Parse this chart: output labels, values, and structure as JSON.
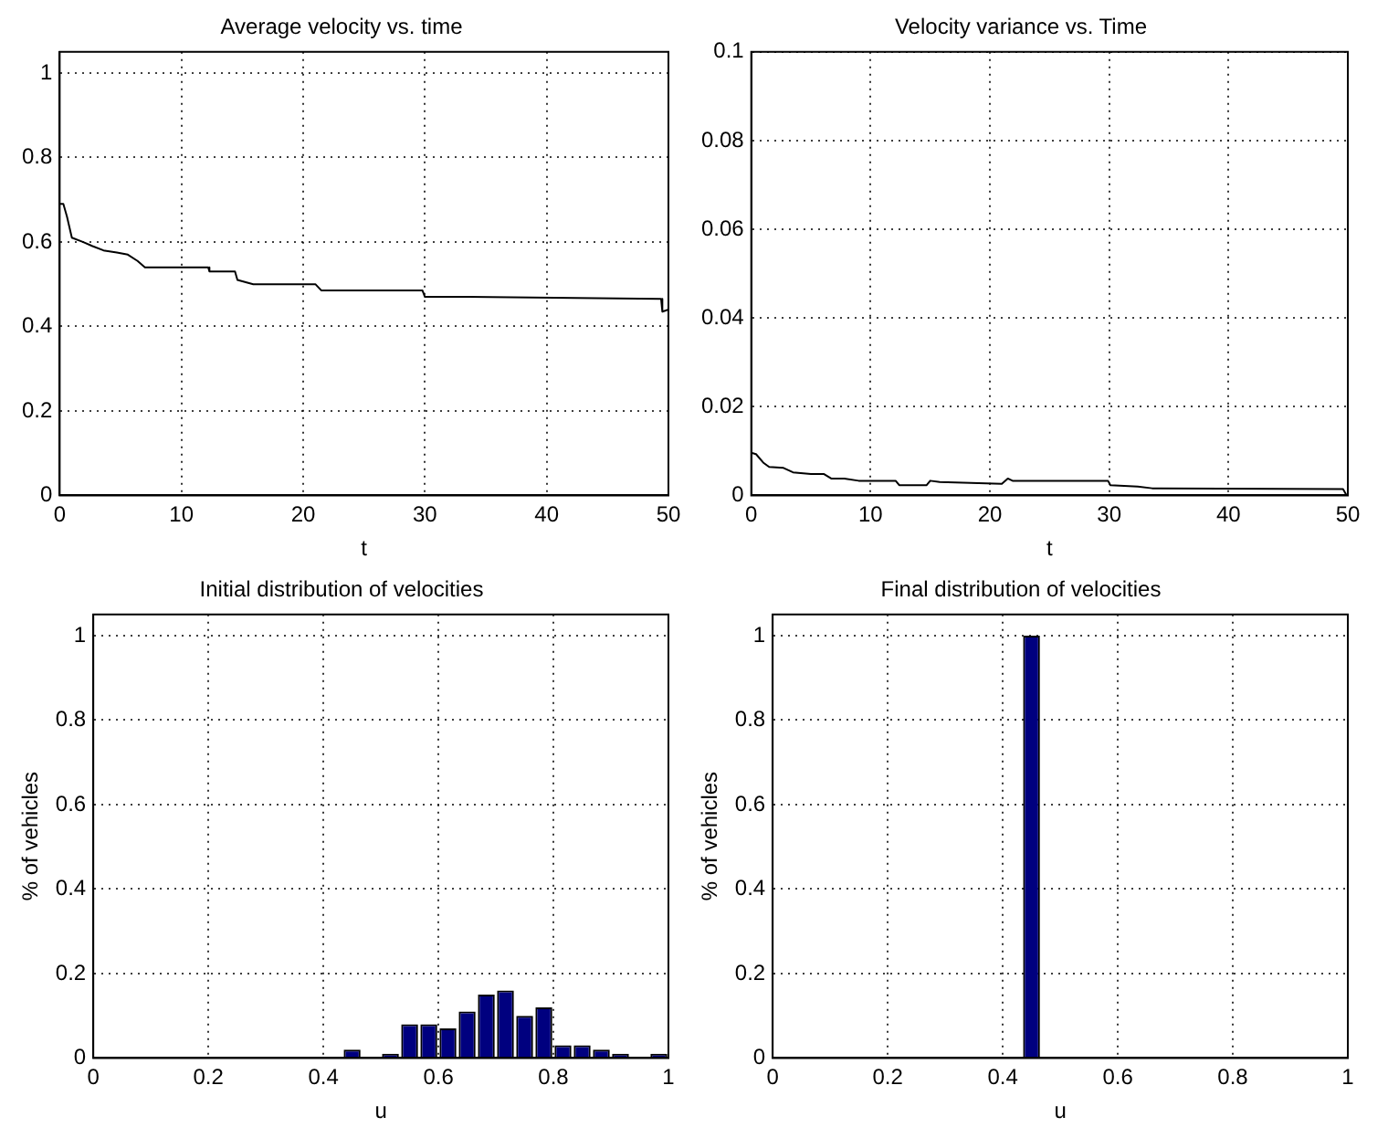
{
  "chart_data": [
    {
      "type": "line",
      "title": "Average velocity vs. time",
      "xlabel": "t",
      "color": "#000000",
      "grid": true,
      "xlim": [
        0,
        50
      ],
      "xticks": [
        0,
        10,
        20,
        30,
        40,
        50
      ],
      "ylim": [
        0,
        1.05
      ],
      "yticks": [
        0,
        0.2,
        0.4,
        0.6,
        0.8,
        1
      ],
      "x": [
        0,
        0.3,
        0.6,
        1.0,
        1.9,
        2.7,
        3.6,
        4.7,
        5.6,
        6.4,
        7.0,
        12.2,
        12.3,
        14.4,
        14.6,
        15.9,
        21.0,
        21.5,
        29.8,
        30.0,
        33.6,
        49.4,
        49.5,
        50
      ],
      "values": [
        0.69,
        0.69,
        0.66,
        0.61,
        0.6,
        0.59,
        0.58,
        0.575,
        0.57,
        0.555,
        0.54,
        0.54,
        0.53,
        0.53,
        0.51,
        0.5,
        0.5,
        0.485,
        0.485,
        0.47,
        0.47,
        0.465,
        0.435,
        0.44
      ]
    },
    {
      "type": "line",
      "title": "Velocity variance vs. Time",
      "xlabel": "t",
      "color": "#000000",
      "grid": true,
      "xlim": [
        0,
        50
      ],
      "xticks": [
        0,
        10,
        20,
        30,
        40,
        50
      ],
      "ylim": [
        0,
        0.1
      ],
      "yticks": [
        0,
        0.02,
        0.04,
        0.06,
        0.08,
        0.1
      ],
      "x": [
        0,
        0.4,
        1.0,
        1.5,
        2.7,
        3.5,
        5.0,
        6.1,
        6.7,
        7.8,
        9.0,
        12.1,
        12.4,
        14.7,
        15.0,
        15.8,
        21.0,
        21.5,
        21.9,
        29.9,
        30.1,
        32.4,
        33.6,
        49.6,
        49.9
      ],
      "values": [
        0.0096,
        0.0093,
        0.0074,
        0.0064,
        0.0062,
        0.0052,
        0.0048,
        0.0048,
        0.0038,
        0.0038,
        0.0033,
        0.0033,
        0.0023,
        0.0023,
        0.0033,
        0.003,
        0.0026,
        0.0038,
        0.0033,
        0.0033,
        0.0023,
        0.002,
        0.0016,
        0.0014,
        0
      ]
    },
    {
      "type": "histogram",
      "title": "Initial distribution of velocities",
      "xlabel": "u",
      "ylabel": "% of vehicles",
      "color": "#00007f",
      "grid": true,
      "xlim": [
        0,
        1
      ],
      "xticks": [
        0,
        0.2,
        0.4,
        0.6,
        0.8,
        1
      ],
      "ylim": [
        0,
        1.05
      ],
      "yticks": [
        0,
        0.2,
        0.4,
        0.6,
        0.8,
        1
      ],
      "bins": [
        0,
        0.0333,
        0.0667,
        0.1,
        0.1333,
        0.1667,
        0.2,
        0.2333,
        0.2667,
        0.3,
        0.3333,
        0.3667,
        0.4,
        0.4333,
        0.4667,
        0.5,
        0.5333,
        0.5667,
        0.6,
        0.6333,
        0.6667,
        0.7,
        0.7333,
        0.7667,
        0.8,
        0.8333,
        0.8667,
        0.9,
        0.9333,
        0.9667,
        1
      ],
      "values": [
        0,
        0,
        0,
        0,
        0,
        0,
        0,
        0,
        0,
        0,
        0,
        0,
        0,
        0.02,
        0,
        0.01,
        0.08,
        0.08,
        0.07,
        0.11,
        0.15,
        0.16,
        0.1,
        0.12,
        0.03,
        0.03,
        0.02,
        0.01,
        0,
        0.01
      ]
    },
    {
      "type": "histogram",
      "title": "Final distribution of velocities",
      "xlabel": "u",
      "ylabel": "% of vehicles",
      "color": "#00007f",
      "grid": true,
      "xlim": [
        0,
        1
      ],
      "xticks": [
        0,
        0.2,
        0.4,
        0.6,
        0.8,
        1
      ],
      "ylim": [
        0,
        1.05
      ],
      "yticks": [
        0,
        0.2,
        0.4,
        0.6,
        0.8,
        1
      ],
      "bins": [
        0,
        0.0333,
        0.0667,
        0.1,
        0.1333,
        0.1667,
        0.2,
        0.2333,
        0.2667,
        0.3,
        0.3333,
        0.3667,
        0.4,
        0.4333,
        0.4667,
        0.5,
        0.5333,
        0.5667,
        0.6,
        0.6333,
        0.6667,
        0.7,
        0.7333,
        0.7667,
        0.8,
        0.8333,
        0.8667,
        0.9,
        0.9333,
        0.9667,
        1
      ],
      "values": [
        0,
        0,
        0,
        0,
        0,
        0,
        0,
        0,
        0,
        0,
        0,
        0,
        0,
        1,
        0,
        0,
        0,
        0,
        0,
        0,
        0,
        0,
        0,
        0,
        0,
        0,
        0,
        0,
        0,
        0
      ]
    }
  ]
}
